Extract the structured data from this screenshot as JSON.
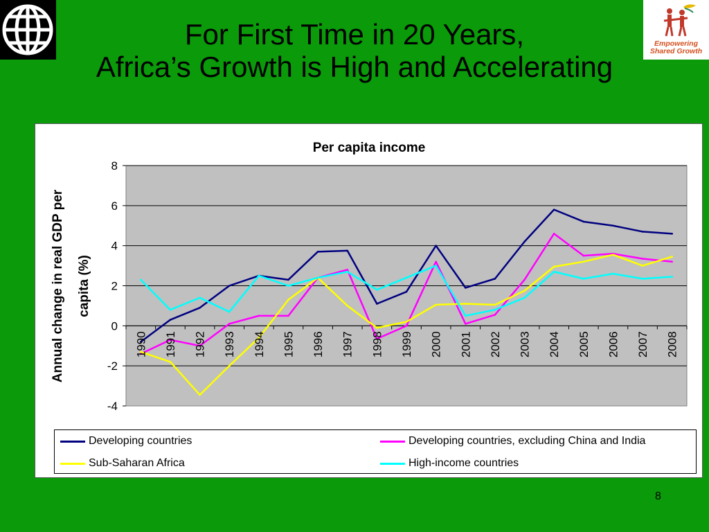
{
  "slide": {
    "title_line1": "For First Time in 20 Years,",
    "title_line2": "Africa’s Growth is High and Accelerating",
    "page_number": "8",
    "logo_left_icon": "world-bank-globe-icon",
    "logo_right_icon": "empowering-shared-growth-logo",
    "logo_right_text_line1": "Empowering",
    "logo_right_text_line2": "Shared Growth",
    "background_color": "#0a9a0a"
  },
  "chart_data": {
    "type": "line",
    "title": "Per capita income",
    "xlabel": "",
    "ylabel": "Annual change in real GDP per capita (%)",
    "categories": [
      "1990",
      "1991",
      "1992",
      "1993",
      "1994",
      "1995",
      "1996",
      "1997",
      "1998",
      "1999",
      "2000",
      "2001",
      "2002",
      "2003",
      "2004",
      "2005",
      "2006",
      "2007",
      "2008"
    ],
    "ylim": [
      -4,
      8
    ],
    "yticks": [
      "8",
      "6",
      "4",
      "2",
      "0",
      "-2",
      "-4"
    ],
    "grid": true,
    "plot_background": "#c0c0c0",
    "legend_position": "bottom",
    "series": [
      {
        "name": "Developing countries",
        "color": "#000080",
        "values": [
          -0.8,
          0.3,
          0.9,
          2.0,
          2.5,
          2.3,
          3.7,
          3.75,
          1.1,
          1.7,
          4.0,
          1.9,
          2.35,
          4.2,
          5.8,
          5.2,
          5.0,
          4.7,
          4.6
        ]
      },
      {
        "name": "Developing countries, excluding China and India",
        "color": "#ff00ff",
        "values": [
          -1.4,
          -0.7,
          -1.0,
          0.1,
          0.5,
          0.5,
          2.4,
          2.8,
          -0.65,
          0.0,
          3.2,
          0.1,
          0.55,
          2.3,
          4.6,
          3.5,
          3.6,
          3.35,
          3.2
        ]
      },
      {
        "name": "Sub-Saharan Africa",
        "color": "#ffff00",
        "values": [
          -1.3,
          -1.8,
          -3.45,
          -2.0,
          -0.6,
          1.3,
          2.4,
          1.0,
          -0.1,
          0.2,
          1.05,
          1.1,
          1.05,
          1.75,
          2.95,
          3.2,
          3.55,
          3.0,
          3.45
        ]
      },
      {
        "name": "High-income countries",
        "color": "#00ffff",
        "values": [
          2.3,
          0.8,
          1.4,
          0.7,
          2.5,
          2.0,
          2.4,
          2.7,
          1.8,
          2.4,
          3.0,
          0.5,
          0.8,
          1.4,
          2.7,
          2.35,
          2.6,
          2.35,
          2.45
        ]
      }
    ]
  }
}
